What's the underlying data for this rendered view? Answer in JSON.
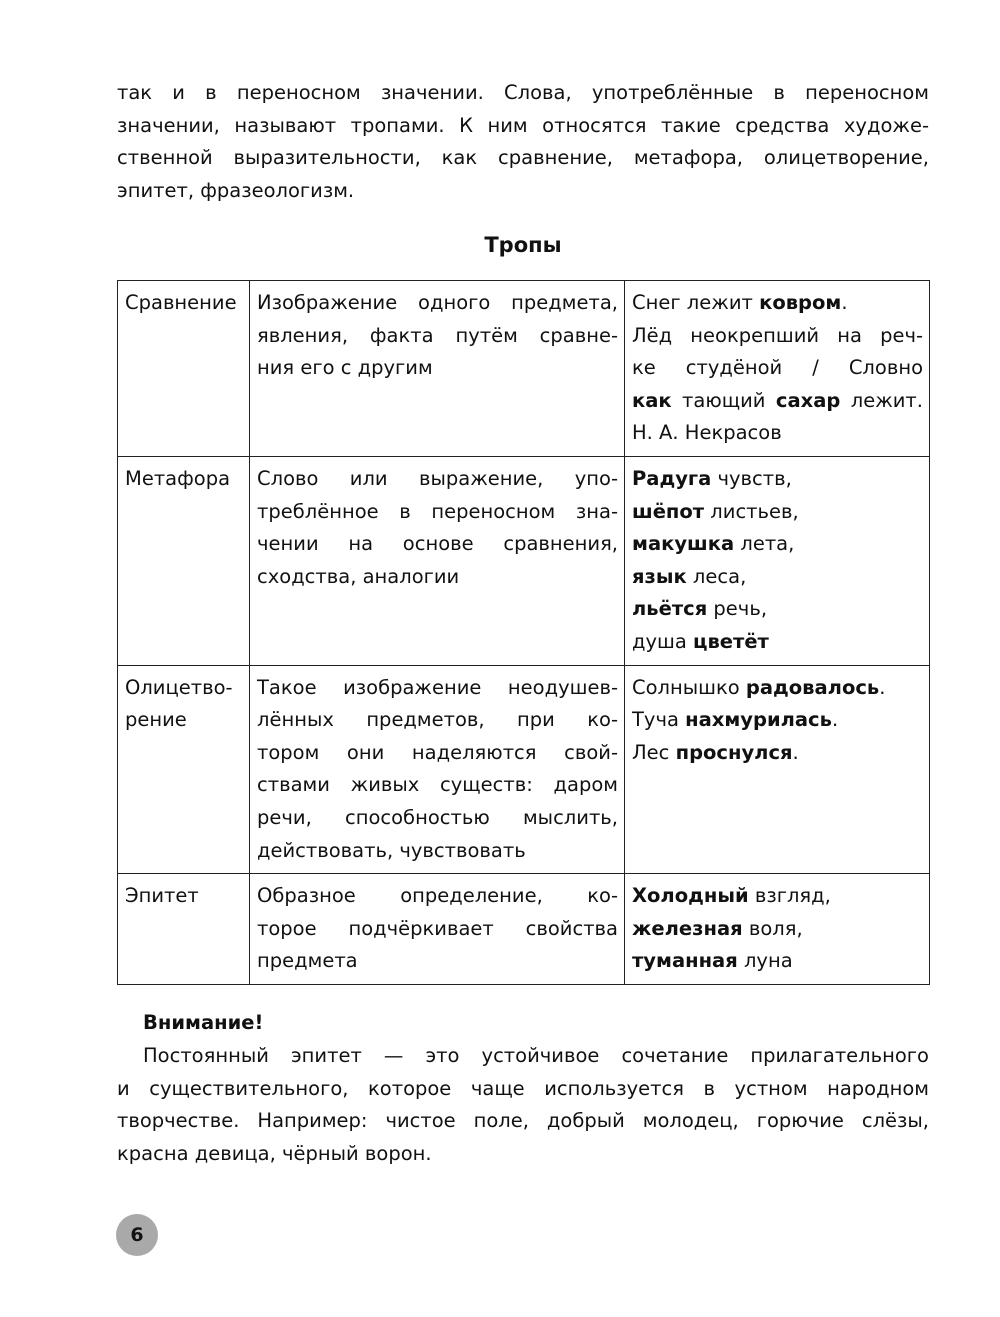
{
  "intro_lines": [
    "так и в переносном значении. Слова, употреблённые в переносном",
    "значении, называют тропами. К ним относятся такие средства художе-",
    "ственной выразительности, как сравнение, метафора, олицетворение,",
    "эпитет, фразеологизм."
  ],
  "table_title": "Тропы",
  "rows": [
    {
      "name": [
        "Сравнение"
      ],
      "def": [
        "Изображение одного предмета,",
        "явления, факта путём сравне-",
        "ния его с другим"
      ],
      "examples": [
        [
          {
            "t": "Снег лежит "
          },
          {
            "t": "ковром",
            "b": true
          },
          {
            "t": "."
          }
        ],
        [
          {
            "t": "Лёд неокрепший на реч-"
          }
        ],
        [
          {
            "t": "ке студёной / Словно"
          }
        ],
        [
          {
            "t": "как",
            "b": true
          },
          {
            "t": " тающий "
          },
          {
            "t": "сахар",
            "b": true
          },
          {
            "t": " лежит."
          }
        ],
        [
          {
            "t": "Н. А. Некрасов"
          }
        ]
      ]
    },
    {
      "name": [
        "Метафора"
      ],
      "def": [
        "Слово или выражение, упо-",
        "треблённое в переносном зна-",
        "чении на основе сравнения,",
        "сходства, аналогии"
      ],
      "examples": [
        [
          {
            "t": "Радуга",
            "b": true
          },
          {
            "t": " чувств,"
          }
        ],
        [
          {
            "t": "шёпот",
            "b": true
          },
          {
            "t": " листьев,"
          }
        ],
        [
          {
            "t": "макушка",
            "b": true
          },
          {
            "t": " лета,"
          }
        ],
        [
          {
            "t": "язык",
            "b": true
          },
          {
            "t": " леса,"
          }
        ],
        [
          {
            "t": "льётся",
            "b": true
          },
          {
            "t": " речь,"
          }
        ],
        [
          {
            "t": "душа "
          },
          {
            "t": "цветёт",
            "b": true
          }
        ]
      ]
    },
    {
      "name": [
        "Олицетво-",
        "рение"
      ],
      "def": [
        "Такое изображение неодушев-",
        "лённых предметов, при ко-",
        "тором они наделяются свой-",
        "ствами живых существ: даром",
        "речи, способностью мыслить,",
        "действовать, чувствовать"
      ],
      "examples": [
        [
          {
            "t": "Солнышко "
          },
          {
            "t": "радовалось",
            "b": true
          },
          {
            "t": "."
          }
        ],
        [
          {
            "t": "Туча "
          },
          {
            "t": "нахмурилась",
            "b": true
          },
          {
            "t": "."
          }
        ],
        [
          {
            "t": "Лес "
          },
          {
            "t": "проснулся",
            "b": true
          },
          {
            "t": "."
          }
        ]
      ]
    },
    {
      "name": [
        "Эпитет"
      ],
      "def": [
        "Образное определение, ко-",
        "торое подчёркивает свойства",
        "предмета"
      ],
      "examples": [
        [
          {
            "t": "Холодный",
            "b": true
          },
          {
            "t": " взгляд,"
          }
        ],
        [
          {
            "t": "железная",
            "b": true
          },
          {
            "t": " воля,"
          }
        ],
        [
          {
            "t": "туманная",
            "b": true
          },
          {
            "t": " луна"
          }
        ]
      ]
    }
  ],
  "attention_title": "Внимание!",
  "attention_lines": [
    "Постоянный эпитет — это устойчивое сочетание прилагательного",
    "и существительного, которое чаще используется в устном народном",
    "творчестве. Например: чистое поле, добрый молодец, горючие слёзы,",
    "красна девица, чёрный ворон."
  ],
  "page_number": "6"
}
